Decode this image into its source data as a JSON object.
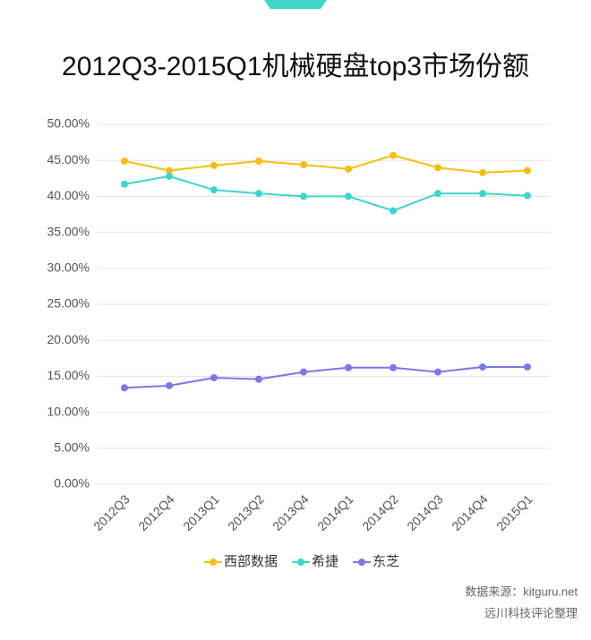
{
  "chart_data": {
    "type": "line",
    "title": "2012Q3-2015Q1机械硬盘top3市场份额",
    "categories": [
      "2012Q3",
      "2012Q4",
      "2013Q1",
      "2013Q2",
      "2013Q4",
      "2014Q1",
      "2014Q2",
      "2014Q3",
      "2014Q4",
      "2015Q1"
    ],
    "series": [
      {
        "name": "西部数据",
        "color": "#f5bf0f",
        "values": [
          44.9,
          43.6,
          44.3,
          44.9,
          44.4,
          43.8,
          45.7,
          44.0,
          43.3,
          43.6
        ]
      },
      {
        "name": "希捷",
        "color": "#3dd6cc",
        "values": [
          41.7,
          42.8,
          40.9,
          40.4,
          40.0,
          40.0,
          38.0,
          40.4,
          40.4,
          40.1
        ]
      },
      {
        "name": "东芝",
        "color": "#7b79e6",
        "values": [
          13.4,
          13.7,
          14.8,
          14.6,
          15.6,
          16.2,
          16.2,
          15.6,
          16.3,
          16.3
        ]
      }
    ],
    "ylim": [
      0,
      50
    ],
    "yticks": [
      {
        "value": 0,
        "label": "0.00%"
      },
      {
        "value": 5,
        "label": "5.00%"
      },
      {
        "value": 10,
        "label": "10.00%"
      },
      {
        "value": 15,
        "label": "15.00%"
      },
      {
        "value": 20,
        "label": "20.00%"
      },
      {
        "value": 25,
        "label": "25.00%"
      },
      {
        "value": 30,
        "label": "30.00%"
      },
      {
        "value": 35,
        "label": "35.00%"
      },
      {
        "value": 40,
        "label": "40.00%"
      },
      {
        "value": 45,
        "label": "45.00%"
      },
      {
        "value": 50,
        "label": "50.00%"
      }
    ],
    "grid": true,
    "legend": "bottom",
    "source": "数据来源：kitguru.net",
    "credit": "远川科技评论整理"
  }
}
